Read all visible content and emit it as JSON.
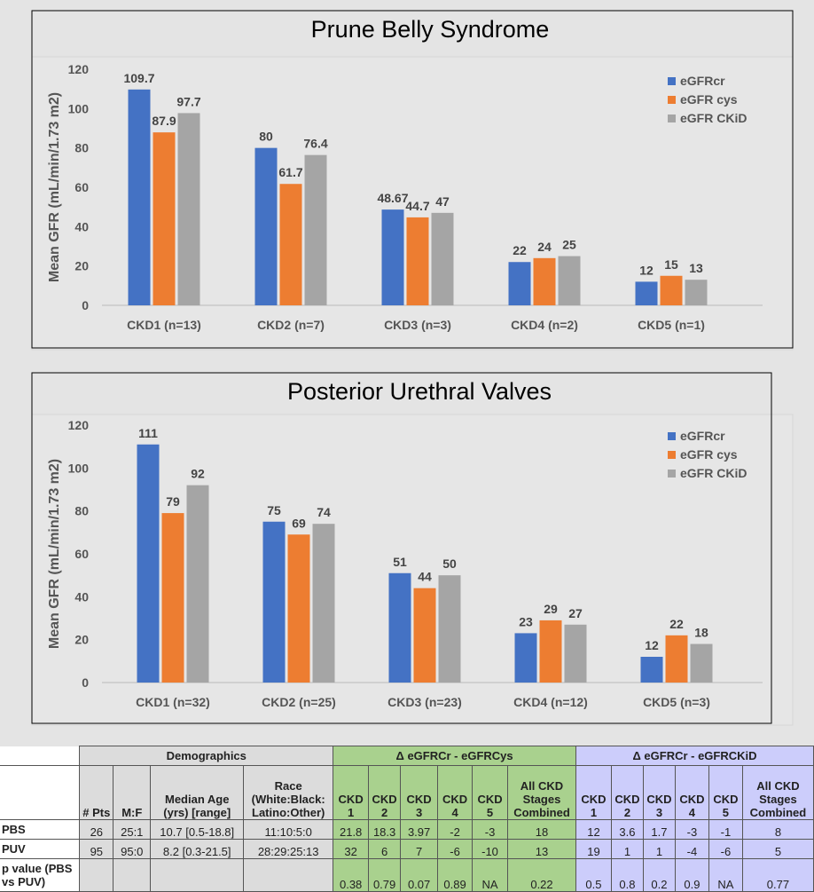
{
  "chart_data": [
    {
      "type": "bar",
      "title": "Prune Belly Syndrome",
      "ylabel": "Mean GFR (mL/min/1.73 m2)",
      "ylim": [
        0,
        120
      ],
      "yticks": [
        0,
        20,
        40,
        60,
        80,
        100,
        120
      ],
      "categories": [
        "CKD1 (n=13)",
        "CKD2 (n=7)",
        "CKD3 (n=3)",
        "CKD4 (n=2)",
        "CKD5 (n=1)"
      ],
      "series": [
        {
          "name": "eGFRcr",
          "color": "#4472c4",
          "values": [
            109.7,
            80,
            48.67,
            22,
            12
          ]
        },
        {
          "name": "eGFR cys",
          "color": "#ed7d31",
          "values": [
            87.9,
            61.7,
            44.7,
            24,
            15
          ]
        },
        {
          "name": "eGFR CKiD",
          "color": "#a5a5a5",
          "values": [
            97.7,
            76.4,
            47,
            25,
            13
          ]
        }
      ],
      "legend": "right"
    },
    {
      "type": "bar",
      "title": "Posterior Urethral Valves",
      "ylabel": "Mean GFR (mL/min/1.73 m2)",
      "ylim": [
        0,
        120
      ],
      "yticks": [
        0,
        20,
        40,
        60,
        80,
        100,
        120
      ],
      "categories": [
        "CKD1 (n=32)",
        "CKD2 (n=25)",
        "CKD3 (n=23)",
        "CKD4 (n=12)",
        "CKD5 (n=3)"
      ],
      "series": [
        {
          "name": "eGFRcr",
          "color": "#4472c4",
          "values": [
            111,
            75,
            51,
            23,
            12
          ]
        },
        {
          "name": "eGFR cys",
          "color": "#ed7d31",
          "values": [
            79,
            69,
            44,
            29,
            22
          ]
        },
        {
          "name": "eGFR CKiD",
          "color": "#a5a5a5",
          "values": [
            92,
            74,
            50,
            27,
            18
          ]
        }
      ],
      "legend": "right"
    }
  ],
  "table": {
    "group_demo": "Demographics",
    "group_cys": "Δ eGFRCr - eGFRCys",
    "group_ckid": "Δ eGFRCr - eGFRCKiD",
    "demo_headers": [
      "# Pts",
      "M:F",
      "Median Age (yrs) [range]",
      "Race (White:Black: Latino:Other)"
    ],
    "stage_headers": [
      "CKD 1",
      "CKD 2",
      "CKD 3",
      "CKD 4",
      "CKD 5",
      "All CKD Stages Combined"
    ],
    "rows": [
      {
        "label": "PBS",
        "demo": [
          "26",
          "25:1",
          "10.7 [0.5-18.8]",
          "11:10:5:0"
        ],
        "cys": [
          "21.8",
          "18.3",
          "3.97",
          "-2",
          "-3",
          "18"
        ],
        "ckid": [
          "12",
          "3.6",
          "1.7",
          "-3",
          "-1",
          "8"
        ]
      },
      {
        "label": "PUV",
        "demo": [
          "95",
          "95:0",
          "8.2 [0.3-21.5]",
          "28:29:25:13"
        ],
        "cys": [
          "32",
          "6",
          "7",
          "-6",
          "-10",
          "13"
        ],
        "ckid": [
          "19",
          "1",
          "1",
          "-4",
          "-6",
          "5"
        ]
      },
      {
        "label": "p value (PBS vs PUV)",
        "demo": [
          "",
          "",
          "",
          ""
        ],
        "cys": [
          "0.38",
          "0.79",
          "0.07",
          "0.89",
          "NA",
          "0.22"
        ],
        "ckid": [
          "0.5",
          "0.8",
          "0.2",
          "0.9",
          "NA",
          "0.77"
        ]
      }
    ]
  }
}
